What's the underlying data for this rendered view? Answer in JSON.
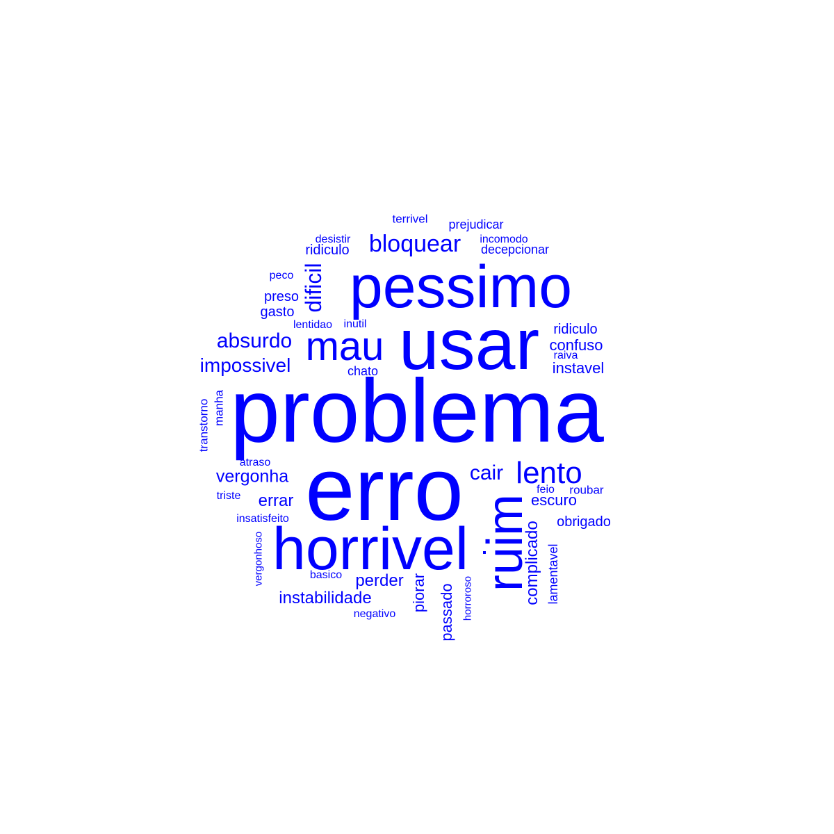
{
  "cloud": {
    "color": "#0000ff",
    "words": [
      {
        "text": "problema",
        "weight": 10
      },
      {
        "text": "erro",
        "weight": 9
      },
      {
        "text": "usar",
        "weight": 8
      },
      {
        "text": "pessimo",
        "weight": 7
      },
      {
        "text": "horrivel",
        "weight": 7
      },
      {
        "text": "ruim",
        "weight": 6
      },
      {
        "text": "mau",
        "weight": 5
      },
      {
        "text": "lento",
        "weight": 4
      },
      {
        "text": "bloquear",
        "weight": 3
      },
      {
        "text": "dificil",
        "weight": 3
      },
      {
        "text": "absurdo",
        "weight": 3
      },
      {
        "text": "impossivel",
        "weight": 3
      },
      {
        "text": "vergonha",
        "weight": 2
      },
      {
        "text": "cair",
        "weight": 3
      },
      {
        "text": "errar",
        "weight": 2
      },
      {
        "text": "perder",
        "weight": 2
      },
      {
        "text": "instabilidade",
        "weight": 2
      },
      {
        "text": "complicado",
        "weight": 2
      },
      {
        "text": "piorar",
        "weight": 2
      },
      {
        "text": "passado",
        "weight": 2
      },
      {
        "text": "escuro",
        "weight": 2
      },
      {
        "text": "confuso",
        "weight": 2
      },
      {
        "text": "instavel",
        "weight": 2
      },
      {
        "text": "ridiculo",
        "weight": 2
      },
      {
        "text": "ridiculo",
        "weight": 2
      },
      {
        "text": "decepcionar",
        "weight": 1
      },
      {
        "text": "prejudicar",
        "weight": 1
      },
      {
        "text": "terrivel",
        "weight": 1
      },
      {
        "text": "desistir",
        "weight": 1
      },
      {
        "text": "incomodo",
        "weight": 1
      },
      {
        "text": "peco",
        "weight": 1
      },
      {
        "text": "preso",
        "weight": 1
      },
      {
        "text": "gasto",
        "weight": 1
      },
      {
        "text": "lentidao",
        "weight": 1
      },
      {
        "text": "inutil",
        "weight": 1
      },
      {
        "text": "chato",
        "weight": 1
      },
      {
        "text": "raiva",
        "weight": 1
      },
      {
        "text": "transtorno",
        "weight": 1
      },
      {
        "text": "manha",
        "weight": 1
      },
      {
        "text": "atraso",
        "weight": 1
      },
      {
        "text": "triste",
        "weight": 1
      },
      {
        "text": "insatisfeito",
        "weight": 1
      },
      {
        "text": "vergonhoso",
        "weight": 1
      },
      {
        "text": "basico",
        "weight": 1
      },
      {
        "text": "negativo",
        "weight": 1
      },
      {
        "text": "horroroso",
        "weight": 1
      },
      {
        "text": "lamentavel",
        "weight": 1
      },
      {
        "text": "obrigado",
        "weight": 1
      },
      {
        "text": "feio",
        "weight": 1
      },
      {
        "text": "roubar",
        "weight": 1
      }
    ]
  }
}
